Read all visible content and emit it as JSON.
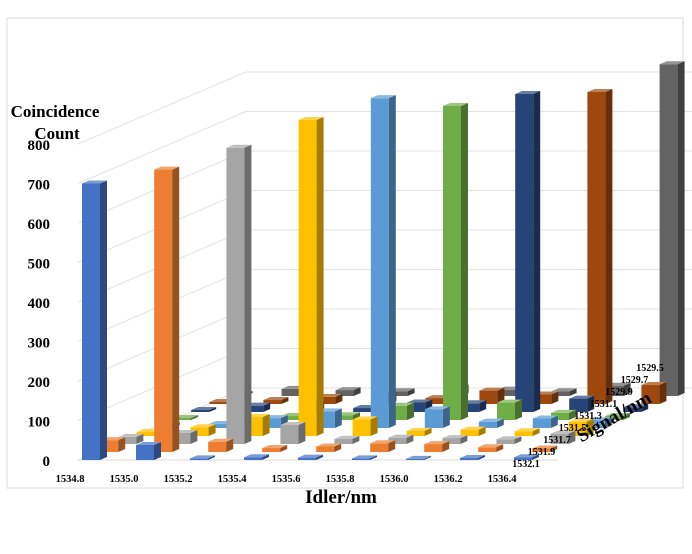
{
  "chart_data": {
    "type": "bar",
    "ylabel_line1": "Coincidence",
    "ylabel_line2": "Count",
    "xlabel": "Idler/nm",
    "zlabel": "Signal/nm",
    "ylim": [
      0,
      800
    ],
    "yticks": [
      "0",
      "100",
      "200",
      "300",
      "400",
      "500",
      "600",
      "700",
      "800"
    ],
    "idler_categories": [
      "1534.8",
      "1535.0",
      "1535.2",
      "1535.4",
      "1535.6",
      "1535.8",
      "1536.0",
      "1536.2",
      "1536.4"
    ],
    "signal_categories": [
      "1532.1",
      "1531.9",
      "1531.7",
      "1531.5",
      "1531.3",
      "1531.1",
      "1529.9",
      "1529.7",
      "1529.5"
    ],
    "grid": true,
    "series": [
      {
        "name": "1532.1",
        "color": "#4472C4",
        "values": [
          700,
          38,
          4,
          7,
          6,
          4,
          3,
          5,
          7
        ]
      },
      {
        "name": "1531.9",
        "color": "#ED7D31",
        "values": [
          30,
          715,
          26,
          10,
          14,
          22,
          20,
          12,
          9
        ]
      },
      {
        "name": "1531.7",
        "color": "#A5A5A5",
        "values": [
          18,
          28,
          750,
          48,
          13,
          16,
          15,
          12,
          26
        ]
      },
      {
        "name": "1531.5",
        "color": "#FFC000",
        "values": [
          10,
          22,
          48,
          800,
          42,
          13,
          16,
          12,
          36
        ]
      },
      {
        "name": "1531.3",
        "color": "#5B9BD5",
        "values": [
          8,
          10,
          25,
          42,
          835,
          47,
          16,
          24,
          20
        ]
      },
      {
        "name": "1531.1",
        "color": "#70AD47",
        "values": [
          5,
          8,
          10,
          12,
          36,
          795,
          44,
          18,
          10
        ]
      },
      {
        "name": "1529.9",
        "color": "#264478",
        "values": [
          5,
          16,
          20,
          10,
          24,
          22,
          805,
          34,
          12
        ]
      },
      {
        "name": "1529.7",
        "color": "#9E480E",
        "values": [
          5,
          10,
          18,
          24,
          15,
          34,
          24,
          790,
          48
        ]
      },
      {
        "name": "1529.5",
        "color": "#636363",
        "values": [
          5,
          18,
          15,
          12,
          21,
          16,
          12,
          26,
          840
        ]
      }
    ]
  }
}
